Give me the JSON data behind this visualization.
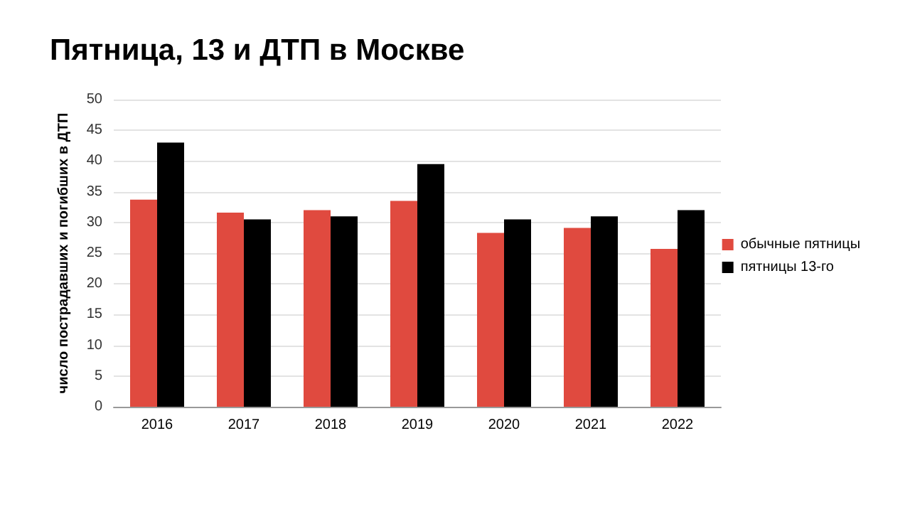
{
  "chart_data": {
    "type": "bar",
    "title": "Пятница, 13 и ДТП в Москве",
    "ylabel": "число пострадавших и погибших в ДТП",
    "categories": [
      "2016",
      "2017",
      "2018",
      "2019",
      "2020",
      "2021",
      "2022"
    ],
    "series": [
      {
        "name": "обычные пятницы",
        "color": "#e04a3f",
        "values": [
          33.7,
          31.6,
          32,
          33.5,
          28.3,
          29.1,
          25.7
        ]
      },
      {
        "name": "пятницы 13-го",
        "color": "#000000",
        "values": [
          43,
          30.5,
          31,
          39.5,
          30.5,
          31,
          32
        ]
      }
    ],
    "ylim": [
      0,
      50
    ],
    "yticks": [
      0,
      5,
      10,
      15,
      20,
      25,
      30,
      35,
      40,
      45,
      50
    ],
    "grid": "y",
    "legend": "right"
  }
}
